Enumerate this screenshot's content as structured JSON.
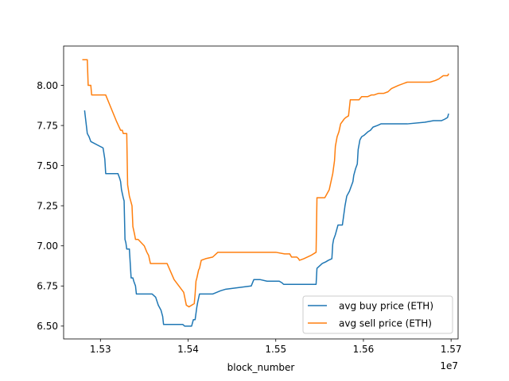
{
  "chart_data": {
    "type": "line",
    "title": "",
    "xlabel": "block_number",
    "ylabel": "",
    "x_offset_label": "1e7",
    "xlim": [
      15258000,
      15708000
    ],
    "ylim": [
      6.42,
      8.245
    ],
    "x_ticks": [
      {
        "value": 15300000,
        "label": "1.53"
      },
      {
        "value": 15400000,
        "label": "1.54"
      },
      {
        "value": 15500000,
        "label": "1.55"
      },
      {
        "value": 15600000,
        "label": "1.56"
      },
      {
        "value": 15700000,
        "label": "1.57"
      }
    ],
    "y_ticks": [
      {
        "value": 6.5,
        "label": "6.50"
      },
      {
        "value": 6.75,
        "label": "6.75"
      },
      {
        "value": 7.0,
        "label": "7.00"
      },
      {
        "value": 7.25,
        "label": "7.25"
      },
      {
        "value": 7.5,
        "label": "7.50"
      },
      {
        "value": 7.75,
        "label": "7.75"
      },
      {
        "value": 8.0,
        "label": "8.00"
      }
    ],
    "grid": false,
    "legend_position": "lower-right",
    "series": [
      {
        "name": "avg buy price (ETH)",
        "color": "#1f77b4",
        "points": [
          [
            15282000,
            7.84
          ],
          [
            15285000,
            7.7
          ],
          [
            15287000,
            7.68
          ],
          [
            15289000,
            7.65
          ],
          [
            15303000,
            7.61
          ],
          [
            15305000,
            7.54
          ],
          [
            15306000,
            7.45
          ],
          [
            15320000,
            7.45
          ],
          [
            15322000,
            7.42
          ],
          [
            15323000,
            7.4
          ],
          [
            15324000,
            7.35
          ],
          [
            15326000,
            7.3
          ],
          [
            15327000,
            7.28
          ],
          [
            15328000,
            7.04
          ],
          [
            15329000,
            7.02
          ],
          [
            15330000,
            6.98
          ],
          [
            15333000,
            6.98
          ],
          [
            15335000,
            6.8
          ],
          [
            15337000,
            6.8
          ],
          [
            15338000,
            6.78
          ],
          [
            15340000,
            6.75
          ],
          [
            15341000,
            6.7
          ],
          [
            15359000,
            6.7
          ],
          [
            15363000,
            6.68
          ],
          [
            15366000,
            6.63
          ],
          [
            15369000,
            6.6
          ],
          [
            15371000,
            6.56
          ],
          [
            15372000,
            6.51
          ],
          [
            15394000,
            6.51
          ],
          [
            15396000,
            6.5
          ],
          [
            15404000,
            6.5
          ],
          [
            15406000,
            6.54
          ],
          [
            15408000,
            6.54
          ],
          [
            15409000,
            6.58
          ],
          [
            15410000,
            6.62
          ],
          [
            15411000,
            6.65
          ],
          [
            15413000,
            6.7
          ],
          [
            15428000,
            6.7
          ],
          [
            15437000,
            6.72
          ],
          [
            15443000,
            6.73
          ],
          [
            15472000,
            6.75
          ],
          [
            15475000,
            6.79
          ],
          [
            15482000,
            6.79
          ],
          [
            15490000,
            6.78
          ],
          [
            15504000,
            6.78
          ],
          [
            15507000,
            6.77
          ],
          [
            15509000,
            6.76
          ],
          [
            15518000,
            6.76
          ],
          [
            15546000,
            6.76
          ],
          [
            15547000,
            6.86
          ],
          [
            15553000,
            6.89
          ],
          [
            15557000,
            6.9
          ],
          [
            15560000,
            6.91
          ],
          [
            15564000,
            6.92
          ],
          [
            15565000,
            7.01
          ],
          [
            15566000,
            7.04
          ],
          [
            15568000,
            7.07
          ],
          [
            15571000,
            7.13
          ],
          [
            15576000,
            7.13
          ],
          [
            15577000,
            7.17
          ],
          [
            15579000,
            7.25
          ],
          [
            15581000,
            7.31
          ],
          [
            15584000,
            7.34
          ],
          [
            15586000,
            7.37
          ],
          [
            15588000,
            7.4
          ],
          [
            15589000,
            7.44
          ],
          [
            15591000,
            7.48
          ],
          [
            15593000,
            7.51
          ],
          [
            15594000,
            7.6
          ],
          [
            15596000,
            7.66
          ],
          [
            15598000,
            7.68
          ],
          [
            15601000,
            7.69
          ],
          [
            15605000,
            7.71
          ],
          [
            15608000,
            7.72
          ],
          [
            15611000,
            7.74
          ],
          [
            15616000,
            7.75
          ],
          [
            15620000,
            7.76
          ],
          [
            15630000,
            7.76
          ],
          [
            15650000,
            7.76
          ],
          [
            15670000,
            7.77
          ],
          [
            15680000,
            7.78
          ],
          [
            15689000,
            7.78
          ],
          [
            15693000,
            7.79
          ],
          [
            15696000,
            7.8
          ],
          [
            15697000,
            7.82
          ]
        ]
      },
      {
        "name": "avg sell price (ETH)",
        "color": "#ff7f0e",
        "points": [
          [
            15280000,
            8.16
          ],
          [
            15285000,
            8.16
          ],
          [
            15286000,
            8.0
          ],
          [
            15289000,
            8.0
          ],
          [
            15290000,
            7.94
          ],
          [
            15305000,
            7.94
          ],
          [
            15306000,
            7.94
          ],
          [
            15318000,
            7.78
          ],
          [
            15323000,
            7.72
          ],
          [
            15325000,
            7.72
          ],
          [
            15326000,
            7.7
          ],
          [
            15330000,
            7.7
          ],
          [
            15331000,
            7.38
          ],
          [
            15333000,
            7.31
          ],
          [
            15336000,
            7.25
          ],
          [
            15337000,
            7.12
          ],
          [
            15339000,
            7.07
          ],
          [
            15340000,
            7.04
          ],
          [
            15343000,
            7.04
          ],
          [
            15350000,
            7.0
          ],
          [
            15353000,
            6.96
          ],
          [
            15355000,
            6.94
          ],
          [
            15357000,
            6.89
          ],
          [
            15376000,
            6.89
          ],
          [
            15380000,
            6.84
          ],
          [
            15384000,
            6.79
          ],
          [
            15395000,
            6.71
          ],
          [
            15398000,
            6.63
          ],
          [
            15401000,
            6.62
          ],
          [
            15407000,
            6.64
          ],
          [
            15408000,
            6.7
          ],
          [
            15409000,
            6.78
          ],
          [
            15410000,
            6.8
          ],
          [
            15412000,
            6.85
          ],
          [
            15413000,
            6.86
          ],
          [
            15415000,
            6.91
          ],
          [
            15420000,
            6.92
          ],
          [
            15428000,
            6.93
          ],
          [
            15432000,
            6.95
          ],
          [
            15434000,
            6.96
          ],
          [
            15500000,
            6.96
          ],
          [
            15510000,
            6.95
          ],
          [
            15516000,
            6.95
          ],
          [
            15518000,
            6.93
          ],
          [
            15524000,
            6.93
          ],
          [
            15526000,
            6.92
          ],
          [
            15527000,
            6.91
          ],
          [
            15532000,
            6.92
          ],
          [
            15540000,
            6.94
          ],
          [
            15546000,
            6.96
          ],
          [
            15547000,
            7.3
          ],
          [
            15556000,
            7.3
          ],
          [
            15561000,
            7.35
          ],
          [
            15565000,
            7.45
          ],
          [
            15567000,
            7.53
          ],
          [
            15568000,
            7.62
          ],
          [
            15570000,
            7.68
          ],
          [
            15572000,
            7.71
          ],
          [
            15574000,
            7.76
          ],
          [
            15578000,
            7.79
          ],
          [
            15580000,
            7.8
          ],
          [
            15583000,
            7.81
          ],
          [
            15585000,
            7.91
          ],
          [
            15595000,
            7.91
          ],
          [
            15598000,
            7.93
          ],
          [
            15605000,
            7.93
          ],
          [
            15609000,
            7.94
          ],
          [
            15612000,
            7.94
          ],
          [
            15617000,
            7.95
          ],
          [
            15623000,
            7.95
          ],
          [
            15628000,
            7.96
          ],
          [
            15632000,
            7.98
          ],
          [
            15640000,
            8.0
          ],
          [
            15650000,
            8.02
          ],
          [
            15660000,
            8.02
          ],
          [
            15676000,
            8.02
          ],
          [
            15682000,
            8.03
          ],
          [
            15686000,
            8.04
          ],
          [
            15691000,
            8.06
          ],
          [
            15696000,
            8.06
          ],
          [
            15697000,
            8.07
          ]
        ]
      }
    ]
  }
}
